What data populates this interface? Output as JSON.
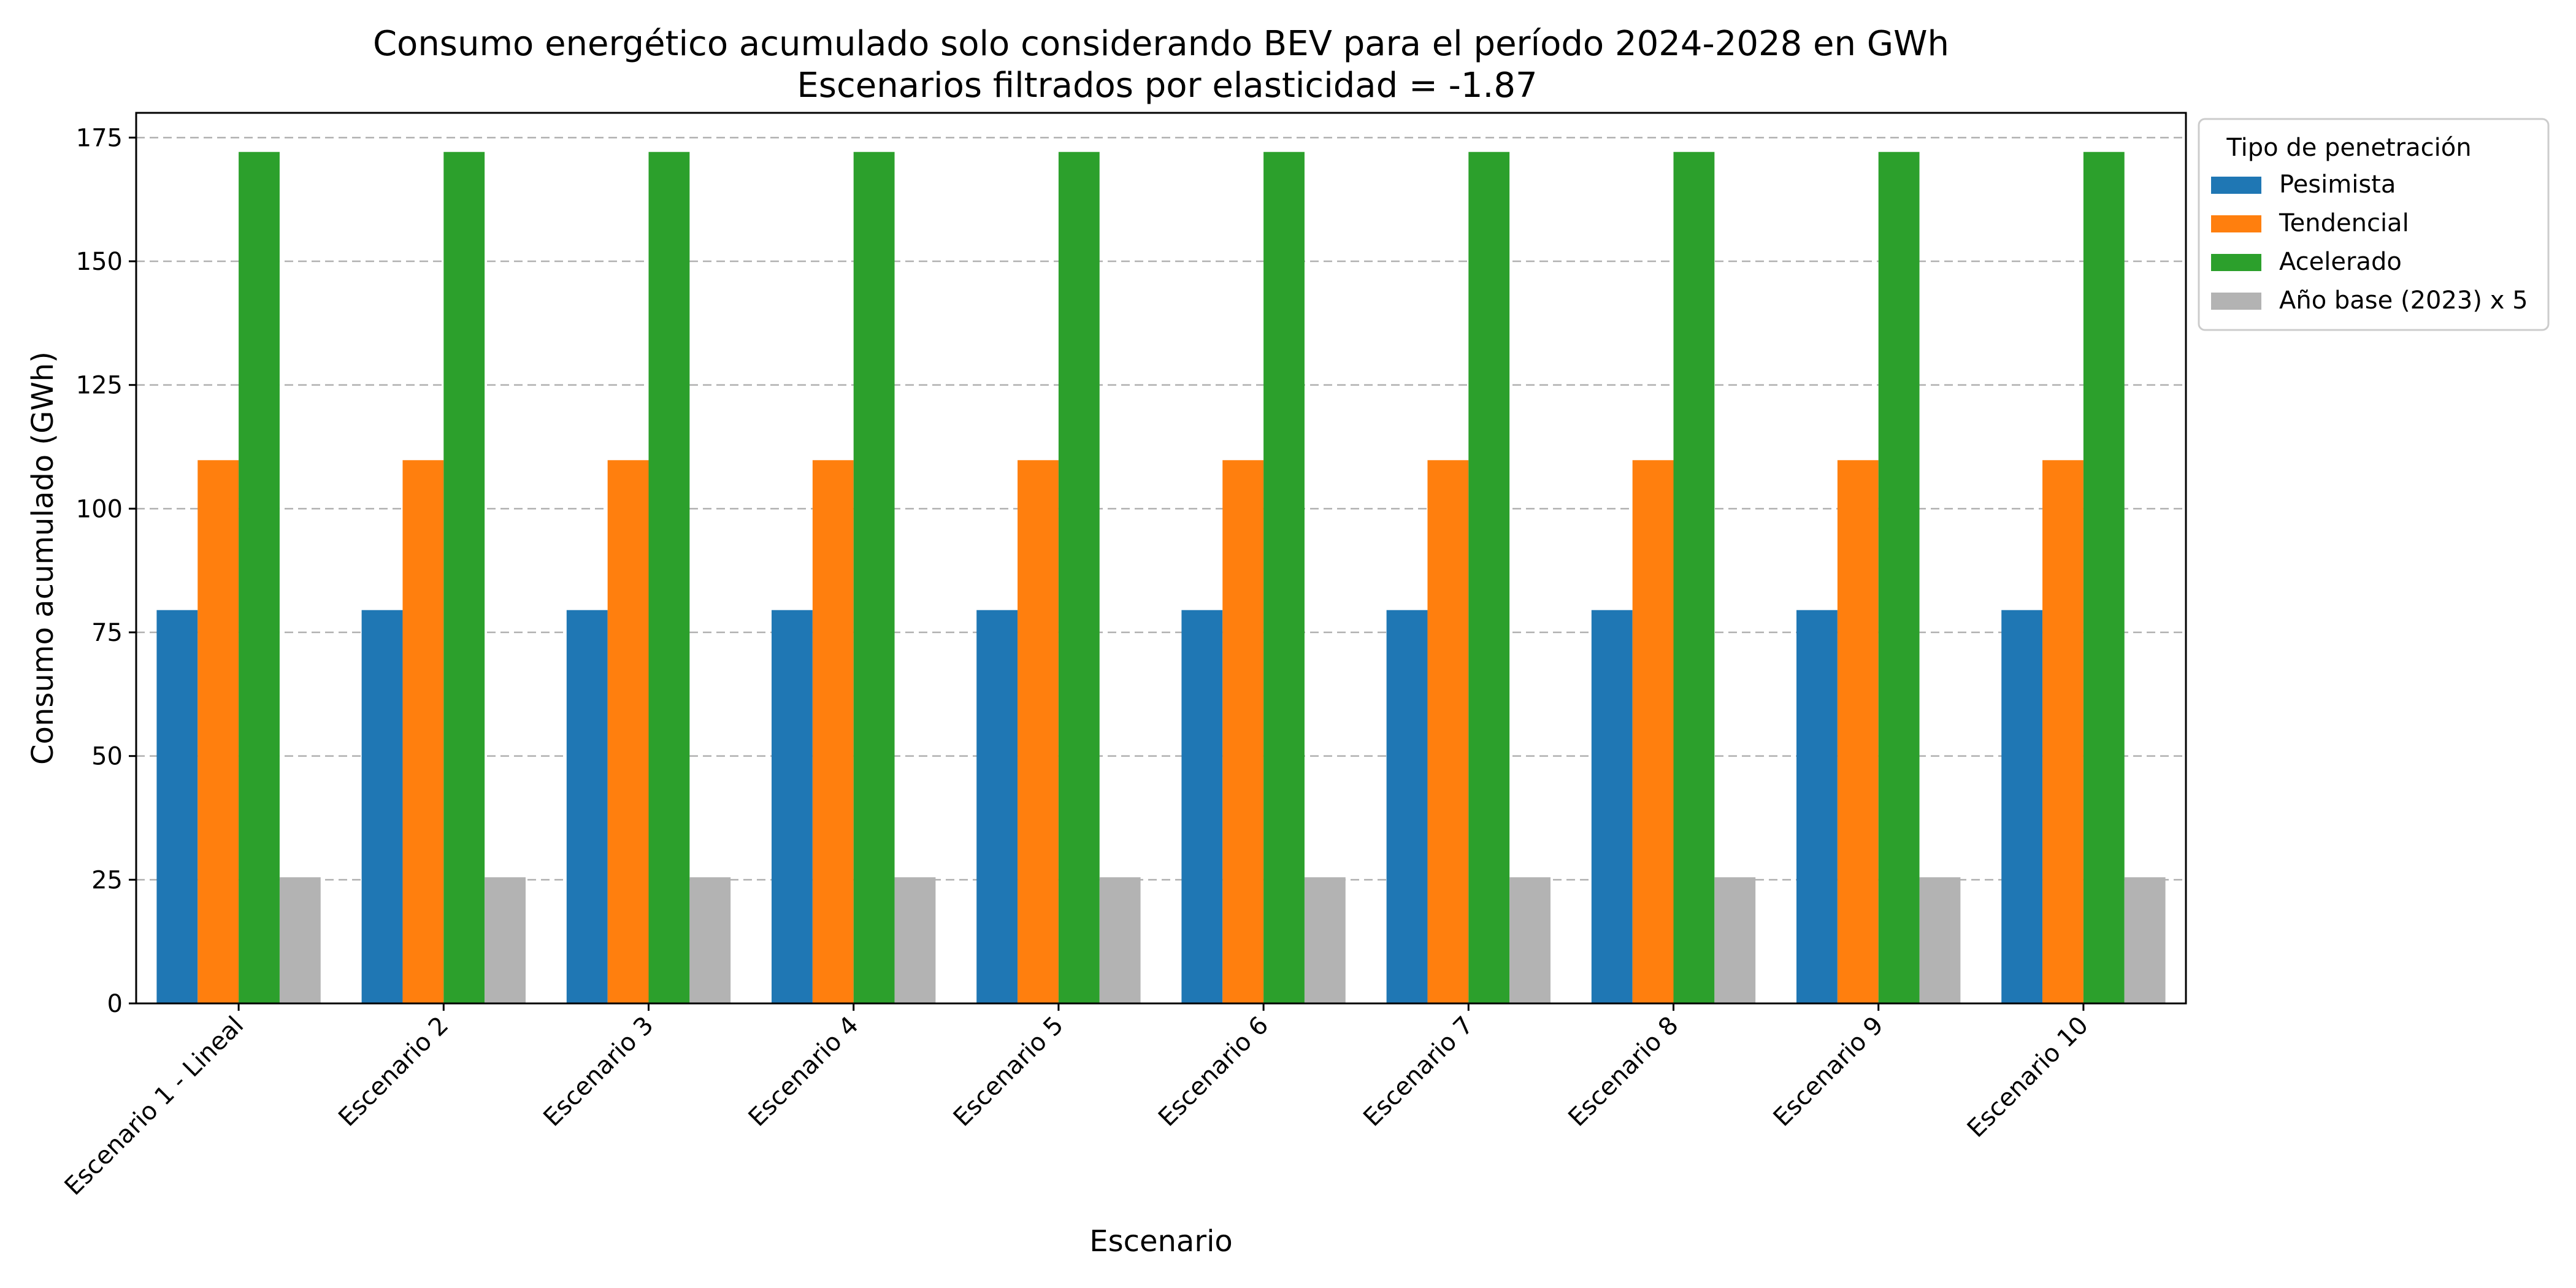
{
  "chart_data": {
    "type": "bar",
    "title": "Consumo energético acumulado solo considerando BEV para el período 2024-2028 en GWh",
    "subtitle": "Escenarios filtrados por elasticidad = -1.87",
    "xlabel": "Escenario",
    "ylabel": "Consumo acumulado (GWh)",
    "ylim": [
      0,
      180
    ],
    "yticks": [
      0,
      25,
      50,
      75,
      100,
      125,
      150,
      175
    ],
    "grid": "y-dashed",
    "legend_title": "Tipo de penetración",
    "legend_position": "outside-top-right",
    "categories": [
      "Escenario 1 - Lineal",
      "Escenario 2",
      "Escenario 3",
      "Escenario 4",
      "Escenario 5",
      "Escenario 6",
      "Escenario 7",
      "Escenario 8",
      "Escenario 9",
      "Escenario 10"
    ],
    "series": [
      {
        "name": "Pesimista",
        "color": "#1f77b4",
        "values": [
          79.5,
          79.5,
          79.5,
          79.5,
          79.5,
          79.5,
          79.5,
          79.5,
          79.5,
          79.5
        ]
      },
      {
        "name": "Tendencial",
        "color": "#ff7f0e",
        "values": [
          109.8,
          109.8,
          109.8,
          109.8,
          109.8,
          109.8,
          109.8,
          109.8,
          109.8,
          109.8
        ]
      },
      {
        "name": "Acelerado",
        "color": "#2ca02c",
        "values": [
          172.1,
          172.1,
          172.1,
          172.1,
          172.1,
          172.1,
          172.1,
          172.1,
          172.1,
          172.1
        ]
      },
      {
        "name": "Año base (2023) x 5",
        "color": "#b3b3b3",
        "values": [
          25.5,
          25.5,
          25.5,
          25.5,
          25.5,
          25.5,
          25.5,
          25.5,
          25.5,
          25.5
        ]
      }
    ]
  }
}
